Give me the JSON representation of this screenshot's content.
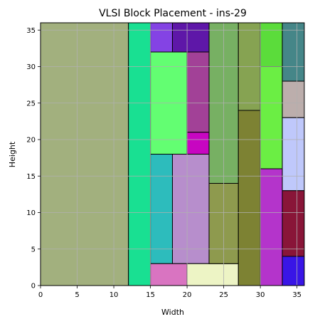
{
  "chart_data": {
    "type": "block-placement",
    "title": "VLSI Block Placement - ins-29",
    "xlabel": "Width",
    "ylabel": "Height",
    "xlim": [
      0,
      36
    ],
    "ylim": [
      0,
      36
    ],
    "xticks": [
      "0",
      "5",
      "10",
      "15",
      "20",
      "25",
      "30",
      "35"
    ],
    "yticks": [
      "0",
      "5",
      "10",
      "15",
      "20",
      "25",
      "30",
      "35"
    ],
    "xtick_values": [
      0,
      5,
      10,
      15,
      20,
      25,
      30,
      35
    ],
    "ytick_values": [
      0,
      5,
      10,
      15,
      20,
      25,
      30,
      35
    ],
    "grid": true,
    "blocks": [
      {
        "x": 0,
        "y": 0,
        "w": 12,
        "h": 36,
        "color": "#a2b07e"
      },
      {
        "x": 12,
        "y": 0,
        "w": 3,
        "h": 36,
        "color": "#19e092"
      },
      {
        "x": 15,
        "y": 32,
        "w": 3,
        "h": 4,
        "color": "#8443e4"
      },
      {
        "x": 18,
        "y": 32,
        "w": 5,
        "h": 4,
        "color": "#5e17a8"
      },
      {
        "x": 15,
        "y": 18,
        "w": 5,
        "h": 14,
        "color": "#63fe72"
      },
      {
        "x": 20,
        "y": 21,
        "w": 3,
        "h": 11,
        "color": "#a24197"
      },
      {
        "x": 20,
        "y": 18,
        "w": 3,
        "h": 3,
        "color": "#c706c1"
      },
      {
        "x": 15,
        "y": 3,
        "w": 3,
        "h": 15,
        "color": "#2dbcbc"
      },
      {
        "x": 18,
        "y": 3,
        "w": 5,
        "h": 15,
        "color": "#b78ecc"
      },
      {
        "x": 15,
        "y": 0,
        "w": 5,
        "h": 3,
        "color": "#d974c1"
      },
      {
        "x": 20,
        "y": 0,
        "w": 7,
        "h": 3,
        "color": "#edf4c5"
      },
      {
        "x": 23,
        "y": 14,
        "w": 4,
        "h": 22,
        "color": "#77b063"
      },
      {
        "x": 23,
        "y": 3,
        "w": 4,
        "h": 11,
        "color": "#8e9a4e"
      },
      {
        "x": 27,
        "y": 24,
        "w": 3,
        "h": 12,
        "color": "#86a352"
      },
      {
        "x": 27,
        "y": 0,
        "w": 3,
        "h": 24,
        "color": "#7d8233"
      },
      {
        "x": 30,
        "y": 30,
        "w": 3,
        "h": 6,
        "color": "#5bdc3b"
      },
      {
        "x": 30,
        "y": 16,
        "w": 3,
        "h": 14,
        "color": "#6bee44"
      },
      {
        "x": 30,
        "y": 0,
        "w": 3,
        "h": 16,
        "color": "#b434cb"
      },
      {
        "x": 33,
        "y": 28,
        "w": 3,
        "h": 8,
        "color": "#458688"
      },
      {
        "x": 33,
        "y": 23,
        "w": 3,
        "h": 5,
        "color": "#bcaeac"
      },
      {
        "x": 33,
        "y": 13,
        "w": 3,
        "h": 10,
        "color": "#bfc8fb"
      },
      {
        "x": 33,
        "y": 4,
        "w": 3,
        "h": 9,
        "color": "#891538"
      },
      {
        "x": 33,
        "y": 0,
        "w": 3,
        "h": 4,
        "color": "#3915e6"
      }
    ]
  }
}
